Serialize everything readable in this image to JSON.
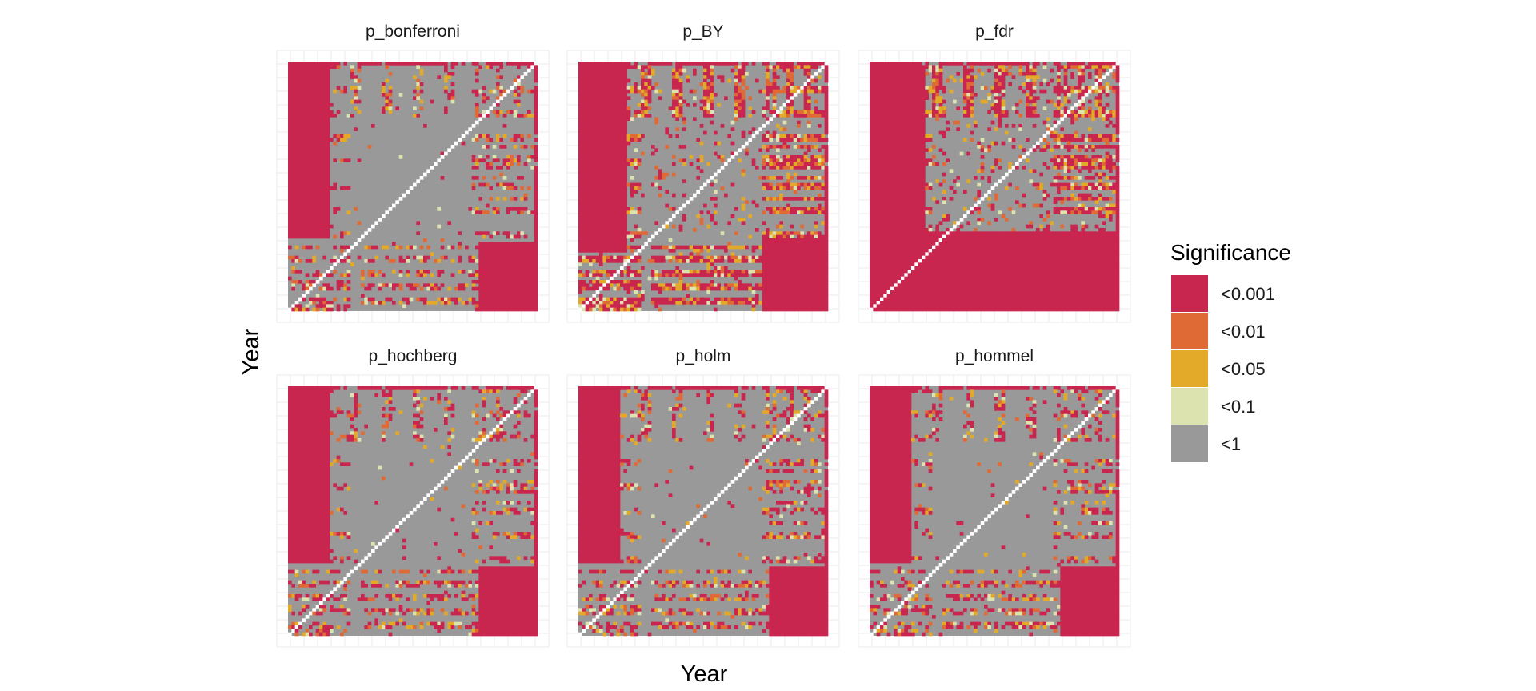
{
  "chart_data": {
    "type": "heatmap",
    "facet_layout": "2x3",
    "xlabel": "Year",
    "ylabel": "Year",
    "axis_tick_labels_shown": false,
    "grid": true,
    "legend": {
      "title": "Significance",
      "position": "right",
      "levels": [
        {
          "label": "<0.001",
          "color": "#C9264F"
        },
        {
          "label": "<0.01",
          "color": "#E06A35"
        },
        {
          "label": "<0.05",
          "color": "#E3AA2A"
        },
        {
          "label": "<0.1",
          "color": "#DDE3AF"
        },
        {
          "label": "<1",
          "color": "#999999"
        }
      ]
    },
    "diagonal_color": "#FFFFFF",
    "panels": [
      {
        "title": "p_bonferroni",
        "method": "bonferroni"
      },
      {
        "title": "p_BY",
        "method": "BY"
      },
      {
        "title": "p_fdr",
        "method": "fdr"
      },
      {
        "title": "p_hochberg",
        "method": "hochberg"
      },
      {
        "title": "p_holm",
        "method": "holm"
      },
      {
        "title": "p_hommel",
        "method": "hommel"
      }
    ]
  }
}
